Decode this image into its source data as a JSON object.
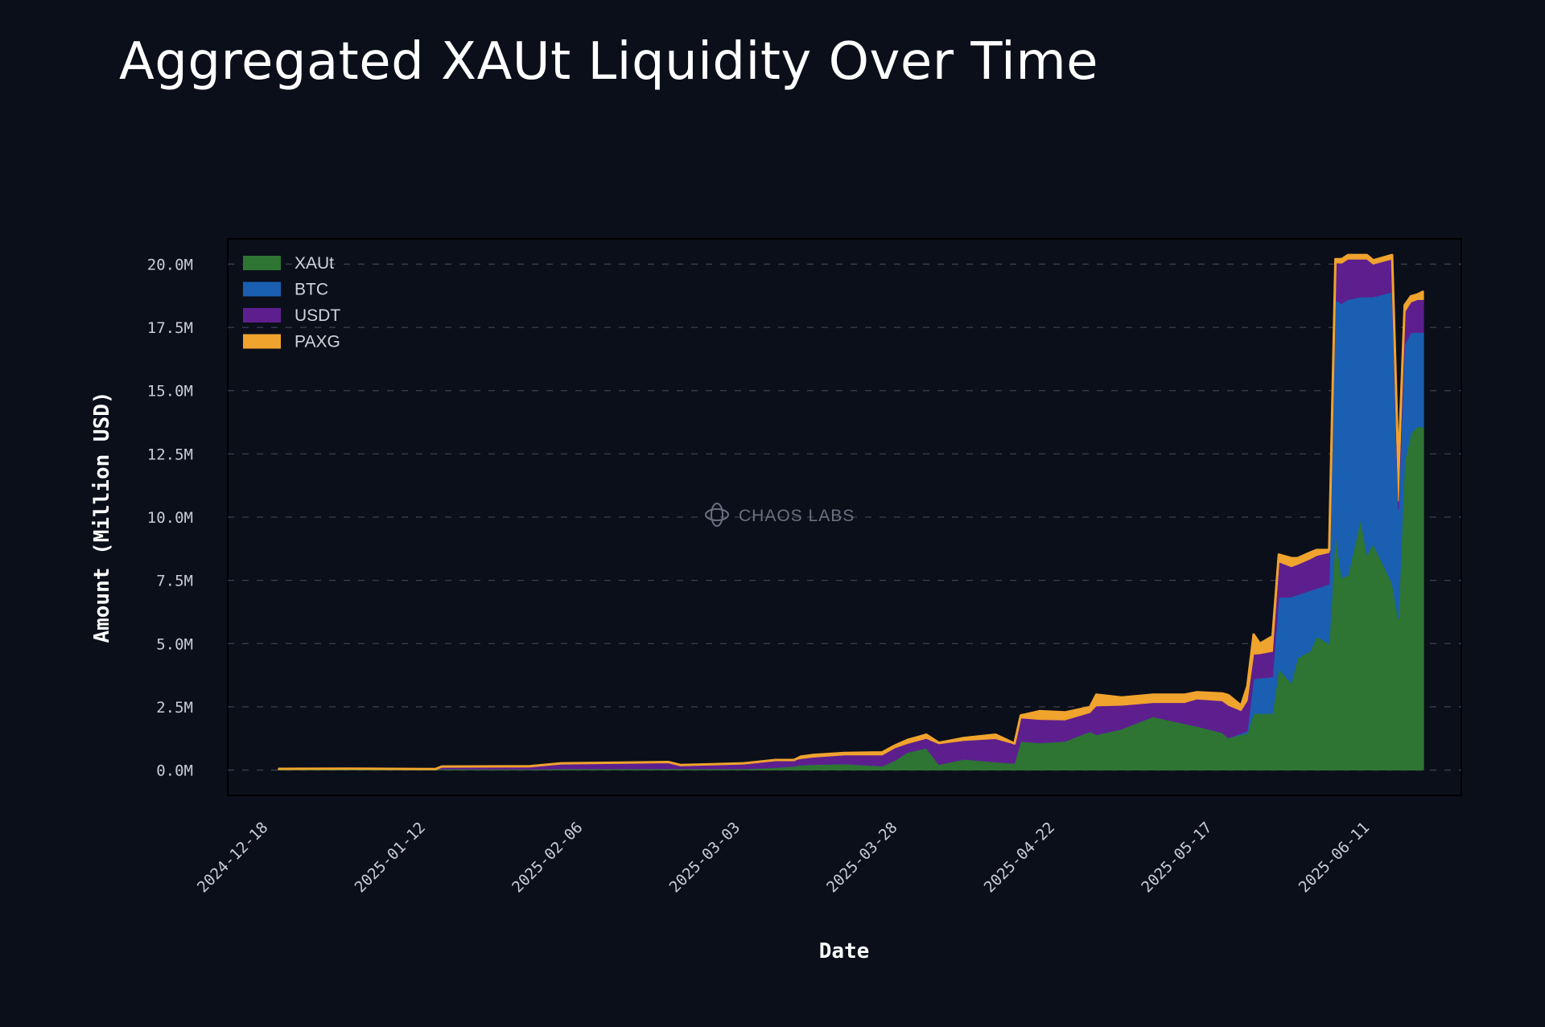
{
  "title": "Aggregated XAUt Liquidity Over Time",
  "watermark": "CHAOS LABS",
  "chart_data": {
    "type": "area",
    "stacked": true,
    "title": "Aggregated XAUt Liquidity Over Time",
    "xlabel": "Date",
    "ylabel": "Amount (Million USD)",
    "ylim": [
      -1,
      21
    ],
    "yticks": [
      0,
      2.5,
      5,
      7.5,
      10,
      12.5,
      15,
      17.5,
      20
    ],
    "ytick_labels": [
      "0.0M",
      "2.5M",
      "5.0M",
      "7.5M",
      "10.0M",
      "12.5M",
      "15.0M",
      "17.5M",
      "20.0M"
    ],
    "xlim": [
      "2024-12-12",
      "2025-06-26"
    ],
    "xticks": [
      "2024-12-18",
      "2025-01-12",
      "2025-02-06",
      "2025-03-03",
      "2025-03-28",
      "2025-04-22",
      "2025-05-17",
      "2025-06-11"
    ],
    "grid": "horizontal dashed",
    "legend_position": "top-left",
    "series_colors": {
      "XAUt": "#2e7433",
      "BTC": "#1a5fb2",
      "USDT": "#5e1f8e",
      "PAXG": "#f0a32d"
    },
    "x": [
      "2024-12-20",
      "2025-01-01",
      "2025-01-14",
      "2025-01-15",
      "2025-01-29",
      "2025-02-03",
      "2025-02-14",
      "2025-02-20",
      "2025-02-22",
      "2025-03-04",
      "2025-03-09",
      "2025-03-12",
      "2025-03-13",
      "2025-03-15",
      "2025-03-20",
      "2025-03-26",
      "2025-03-28",
      "2025-03-30",
      "2025-04-02",
      "2025-04-04",
      "2025-04-08",
      "2025-04-13",
      "2025-04-16",
      "2025-04-17",
      "2025-04-20",
      "2025-04-24",
      "2025-04-28",
      "2025-04-29",
      "2025-05-03",
      "2025-05-08",
      "2025-05-13",
      "2025-05-15",
      "2025-05-19",
      "2025-05-20",
      "2025-05-22",
      "2025-05-23",
      "2025-05-24",
      "2025-05-25",
      "2025-05-27",
      "2025-05-28",
      "2025-05-30",
      "2025-05-31",
      "2025-06-02",
      "2025-06-03",
      "2025-06-05",
      "2025-06-06",
      "2025-06-07",
      "2025-06-08",
      "2025-06-10",
      "2025-06-11",
      "2025-06-12",
      "2025-06-15",
      "2025-06-16",
      "2025-06-17",
      "2025-06-18",
      "2025-06-19",
      "2025-06-20"
    ],
    "series": [
      {
        "name": "XAUt",
        "values": [
          0.05,
          0.06,
          0.04,
          0.04,
          0.03,
          0.05,
          0.05,
          0.06,
          0.05,
          0.05,
          0.1,
          0.15,
          0.2,
          0.22,
          0.25,
          0.16,
          0.38,
          0.7,
          0.87,
          0.22,
          0.43,
          0.32,
          0.27,
          1.14,
          1.08,
          1.14,
          1.52,
          1.4,
          1.62,
          2.11,
          1.84,
          1.73,
          1.48,
          1.27,
          1.4,
          1.45,
          2.24,
          2.24,
          2.24,
          4.0,
          3.44,
          4.43,
          4.71,
          5.28,
          5.0,
          9.36,
          7.6,
          7.7,
          9.93,
          8.52,
          8.94,
          7.39,
          5.98,
          12.18,
          13.3,
          13.59,
          13.55
        ]
      },
      {
        "name": "BTC",
        "values": [
          0,
          0,
          0,
          0,
          0,
          0,
          0,
          0,
          0,
          0,
          0,
          0,
          0,
          0,
          0,
          0,
          0,
          0,
          0,
          0,
          0,
          0,
          0,
          0,
          0,
          0,
          0,
          0,
          0,
          0,
          0,
          0,
          0,
          0,
          0.05,
          0.1,
          1.36,
          1.4,
          1.45,
          2.83,
          3.4,
          2.5,
          2.39,
          1.9,
          2.35,
          9.22,
          10.84,
          10.9,
          8.77,
          10.18,
          9.76,
          11.51,
          4.3,
          4.64,
          4.0,
          3.71,
          3.75
        ]
      },
      {
        "name": "USDT",
        "values": [
          0,
          0,
          0,
          0.1,
          0.12,
          0.22,
          0.25,
          0.26,
          0.15,
          0.22,
          0.3,
          0.25,
          0.25,
          0.29,
          0.35,
          0.44,
          0.5,
          0.35,
          0.38,
          0.82,
          0.74,
          0.92,
          0.76,
          0.92,
          0.92,
          0.84,
          0.75,
          1.14,
          0.94,
          0.56,
          0.83,
          1.08,
          1.26,
          1.29,
          0.9,
          1.2,
          0.98,
          0.96,
          1.0,
          1.4,
          1.2,
          1.2,
          1.25,
          1.3,
          1.25,
          1.47,
          1.6,
          1.6,
          1.5,
          1.5,
          1.3,
          1.3,
          0.35,
          1.28,
          1.2,
          1.3,
          1.3
        ]
      },
      {
        "name": "PAXG",
        "values": [
          0,
          0,
          0,
          0,
          0,
          0,
          0,
          0,
          0,
          0,
          0,
          0,
          0.08,
          0.09,
          0.08,
          0.1,
          0.09,
          0.14,
          0.15,
          0.04,
          0.1,
          0.16,
          0.02,
          0.1,
          0.33,
          0.3,
          0.22,
          0.44,
          0.31,
          0.31,
          0.31,
          0.27,
          0.29,
          0.4,
          0.2,
          0.56,
          0.78,
          0.4,
          0.6,
          0.29,
          0.34,
          0.25,
          0.25,
          0.22,
          0.1,
          0.15,
          0.16,
          0.16,
          0.16,
          0.16,
          0.15,
          0.16,
          1.27,
          0.28,
          0.23,
          0.2,
          0.32
        ]
      }
    ]
  }
}
